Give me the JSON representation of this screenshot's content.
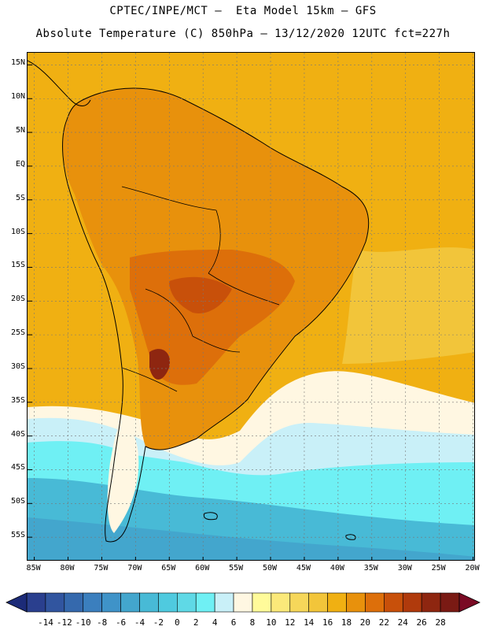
{
  "title_line1": "CPTEC/INPE/MCT –  Eta Model 15km – GFS",
  "title_line2": "Absolute Temperature (C) 850hPa – 13/12/2020 12UTC fct=227h",
  "map": {
    "lon_min": -86,
    "lon_max": -19.6,
    "lat_min": -58.6,
    "lat_max": 16.8,
    "lat_labels": [
      "15N",
      "10N",
      "5N",
      "EQ",
      "5S",
      "10S",
      "15S",
      "20S",
      "25S",
      "30S",
      "35S",
      "40S",
      "45S",
      "50S",
      "55S"
    ],
    "lat_values": [
      15,
      10,
      5,
      0,
      -5,
      -10,
      -15,
      -20,
      -25,
      -30,
      -35,
      -40,
      -45,
      -50,
      -55
    ],
    "lon_labels": [
      "85W",
      "80W",
      "75W",
      "70W",
      "65W",
      "60W",
      "55W",
      "50W",
      "45W",
      "40W",
      "35W",
      "30W",
      "25W",
      "20W"
    ],
    "lon_values": [
      -85,
      -80,
      -75,
      -70,
      -65,
      -60,
      -55,
      -50,
      -45,
      -40,
      -35,
      -30,
      -25,
      -20
    ]
  },
  "colorbar": {
    "labels": [
      "-14",
      "-12",
      "-10",
      "-8",
      "-6",
      "-4",
      "-2",
      "0",
      "2",
      "4",
      "6",
      "8",
      "10",
      "12",
      "14",
      "16",
      "18",
      "20",
      "22",
      "24",
      "26",
      "28"
    ],
    "colors": [
      "#2a3f8e",
      "#31559f",
      "#3569ad",
      "#3b7fbe",
      "#3f93c8",
      "#43a6cd",
      "#48bad6",
      "#4fcadf",
      "#5fd9e6",
      "#6ff0f4",
      "#c9f0f8",
      "#fff7e2",
      "#fffb9a",
      "#fbe97a",
      "#f6d75a",
      "#f2c53a",
      "#f0b012",
      "#e8910c",
      "#dd6f0a",
      "#c8500a",
      "#b03a0c",
      "#8e2610",
      "#7a1a14"
    ],
    "left_arrow_color": "#1c2b78",
    "right_arrow_color": "#7a0a24"
  }
}
